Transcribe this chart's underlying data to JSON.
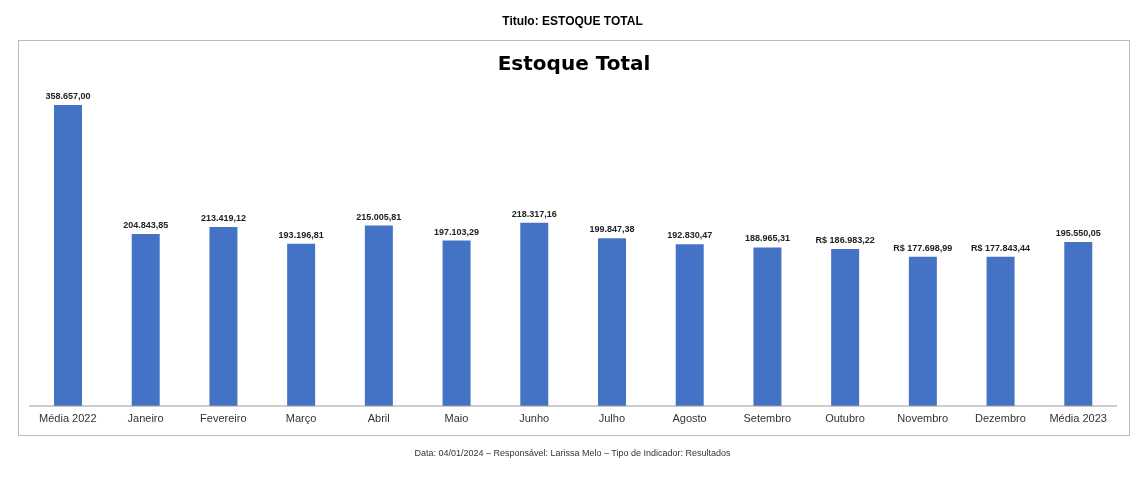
{
  "chart_data": {
    "type": "bar",
    "title": "Titulo: ESTOQUE TOTAL",
    "subtitle": "Estoque Total",
    "categories": [
      "Média 2022",
      "Janeiro",
      "Fevereiro",
      "Março",
      "Abril",
      "Maio",
      "Junho",
      "Julho",
      "Agosto",
      "Setembro",
      "Outubro",
      "Novembro",
      "Dezembro",
      "Média 2023"
    ],
    "values": [
      358657.0,
      204843.85,
      213419.12,
      193196.81,
      215005.81,
      197103.29,
      218317.16,
      199847.38,
      192830.47,
      188965.31,
      186983.22,
      177698.99,
      177843.44,
      195550.05
    ],
    "value_labels": [
      "358.657,00",
      "204.843,85",
      "213.419,12",
      "193.196,81",
      "215.005,81",
      "197.103,29",
      "218.317,16",
      "199.847,38",
      "192.830,47",
      "188.965,31",
      "R$ 186.983,22",
      "R$ 177.698,99",
      "R$ 177.843,44",
      "195.550,05"
    ],
    "color": "#4472c4",
    "grid": false,
    "annotations": [
      "Data: 04/01/2024 – Responsável: Larissa Melo – Tipo de Indicador: Resultados"
    ]
  }
}
